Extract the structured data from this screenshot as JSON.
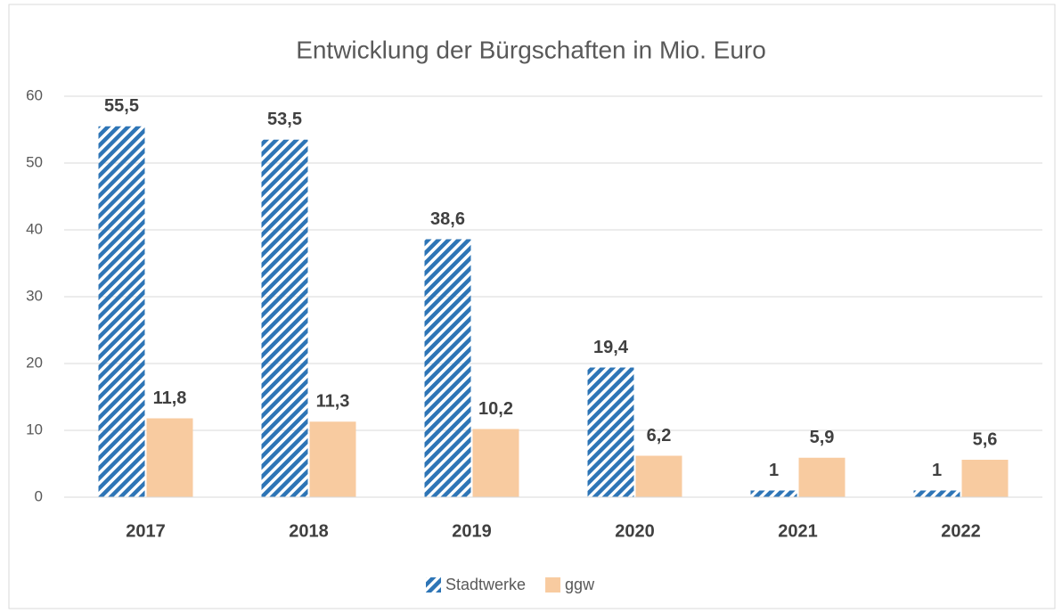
{
  "chart_data": {
    "type": "bar",
    "title": "Entwicklung der Bürgschaften in Mio. Euro",
    "categories": [
      "2017",
      "2018",
      "2019",
      "2020",
      "2021",
      "2022"
    ],
    "series": [
      {
        "name": "Stadtwerke",
        "color": "#2e75b6",
        "pattern": "diagonal-stripes",
        "values": [
          55.5,
          53.5,
          38.6,
          19.4,
          1,
          1
        ],
        "value_labels": [
          "55,5",
          "53,5",
          "38,6",
          "19,4",
          "1",
          "1"
        ]
      },
      {
        "name": "ggw",
        "color": "#f8cba0",
        "values": [
          11.8,
          11.3,
          10.2,
          6.2,
          5.9,
          5.6
        ],
        "value_labels": [
          "11,8",
          "11,3",
          "10,2",
          "6,2",
          "5,9",
          "5,6"
        ]
      }
    ],
    "ylim": [
      0,
      60
    ],
    "yticks": [
      0,
      10,
      20,
      30,
      40,
      50,
      60
    ],
    "grid": true,
    "legend": "bottom"
  }
}
